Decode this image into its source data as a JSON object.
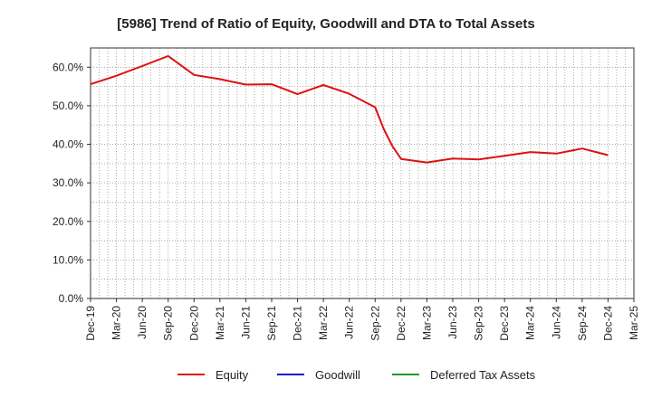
{
  "chart_data": {
    "type": "line",
    "title": "[5986]  Trend of Ratio of Equity, Goodwill and DTA to Total Assets",
    "xlabel": "",
    "ylabel": "",
    "ylim": [
      0,
      65
    ],
    "yticks": [
      0,
      10,
      20,
      30,
      40,
      50,
      60
    ],
    "ytick_labels": [
      "0.0%",
      "10.0%",
      "20.0%",
      "30.0%",
      "40.0%",
      "50.0%",
      "60.0%"
    ],
    "xticks": [
      "Dec-19",
      "Mar-20",
      "Jun-20",
      "Sep-20",
      "Dec-20",
      "Mar-21",
      "Jun-21",
      "Sep-21",
      "Dec-21",
      "Mar-22",
      "Jun-22",
      "Sep-22",
      "Dec-22",
      "Mar-23",
      "Jun-23",
      "Sep-23",
      "Dec-23",
      "Mar-24",
      "Jun-24",
      "Sep-24",
      "Dec-24",
      "Mar-25"
    ],
    "grid": true,
    "legend_position": "bottom",
    "series": [
      {
        "name": "Equity",
        "color": "#dd1111",
        "points": [
          {
            "x": 0,
            "y": 55.6
          },
          {
            "x": 1,
            "y": 57.8
          },
          {
            "x": 2,
            "y": 60.3
          },
          {
            "x": 3,
            "y": 62.9
          },
          {
            "x": 4,
            "y": 58.0
          },
          {
            "x": 5,
            "y": 56.9
          },
          {
            "x": 6,
            "y": 55.5
          },
          {
            "x": 7,
            "y": 55.6
          },
          {
            "x": 8,
            "y": 53.0
          },
          {
            "x": 9,
            "y": 55.4
          },
          {
            "x": 10,
            "y": 53.1
          },
          {
            "x": 11,
            "y": 49.6
          },
          {
            "x": 11.33,
            "y": 44.0
          },
          {
            "x": 11.67,
            "y": 39.5
          },
          {
            "x": 12,
            "y": 36.2
          },
          {
            "x": 13,
            "y": 35.3
          },
          {
            "x": 14,
            "y": 36.3
          },
          {
            "x": 15,
            "y": 36.1
          },
          {
            "x": 16,
            "y": 37.0
          },
          {
            "x": 17,
            "y": 38.0
          },
          {
            "x": 18,
            "y": 37.6
          },
          {
            "x": 19,
            "y": 38.9
          },
          {
            "x": 20,
            "y": 37.2
          }
        ]
      },
      {
        "name": "Goodwill",
        "color": "#1111cc",
        "points": []
      },
      {
        "name": "Deferred Tax Assets",
        "color": "#229922",
        "points": []
      }
    ]
  }
}
